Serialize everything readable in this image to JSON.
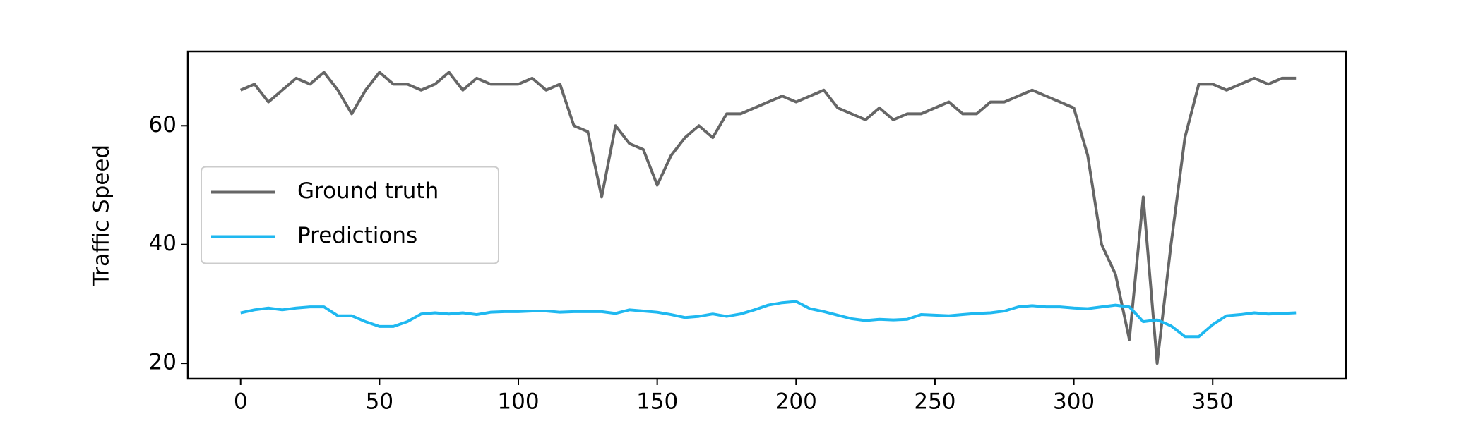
{
  "chart_data": {
    "type": "line",
    "y_label": "Traffic Speed",
    "x": [
      0,
      5,
      10,
      15,
      20,
      25,
      30,
      35,
      40,
      45,
      50,
      55,
      60,
      65,
      70,
      75,
      80,
      85,
      90,
      95,
      100,
      105,
      110,
      115,
      120,
      125,
      130,
      135,
      140,
      145,
      150,
      155,
      160,
      165,
      170,
      175,
      180,
      185,
      190,
      195,
      200,
      205,
      210,
      215,
      220,
      225,
      230,
      235,
      240,
      245,
      250,
      255,
      260,
      265,
      270,
      275,
      280,
      285,
      290,
      295,
      300,
      305,
      310,
      315,
      320,
      325,
      330,
      335,
      340,
      345,
      350,
      355,
      360,
      365,
      370,
      375,
      380
    ],
    "series": [
      {
        "name": "Ground truth",
        "color": "#666666",
        "values": [
          66,
          67,
          64,
          66,
          68,
          67,
          69,
          66,
          62,
          66,
          69,
          67,
          67,
          66,
          67,
          69,
          66,
          68,
          67,
          67,
          67,
          68,
          66,
          67,
          60,
          59,
          48,
          60,
          57,
          56,
          50,
          55,
          58,
          60,
          58,
          62,
          62,
          63,
          64,
          65,
          64,
          65,
          66,
          63,
          62,
          61,
          63,
          61,
          62,
          62,
          63,
          64,
          62,
          62,
          64,
          64,
          65,
          66,
          65,
          64,
          63,
          55,
          40,
          35,
          24,
          48,
          20,
          40,
          58,
          67,
          67,
          66,
          67,
          68,
          67,
          68,
          68
        ]
      },
      {
        "name": "Predictions",
        "color": "#1fb8f0",
        "values": [
          28.5,
          29,
          29.3,
          29,
          29.3,
          29.5,
          29.5,
          28,
          28,
          27,
          26.2,
          26.2,
          27,
          28.3,
          28.5,
          28.3,
          28.5,
          28.2,
          28.6,
          28.7,
          28.7,
          28.8,
          28.8,
          28.6,
          28.7,
          28.7,
          28.7,
          28.4,
          29,
          28.8,
          28.6,
          28.2,
          27.7,
          27.9,
          28.3,
          27.9,
          28.3,
          29,
          29.8,
          30.2,
          30.4,
          29.2,
          28.7,
          28.1,
          27.5,
          27.2,
          27.4,
          27.3,
          27.4,
          28.2,
          28.1,
          28,
          28.2,
          28.4,
          28.5,
          28.8,
          29.5,
          29.7,
          29.5,
          29.5,
          29.3,
          29.2,
          29.5,
          29.8,
          29.5,
          27,
          27.3,
          26.3,
          24.5,
          24.5,
          26.5,
          28,
          28.2,
          28.5,
          28.3,
          28.4,
          28.5
        ]
      }
    ],
    "xlim": [
      -19,
      398
    ],
    "ylim": [
      17.4,
      72.5
    ],
    "xticks": [
      0,
      50,
      100,
      150,
      200,
      250,
      300,
      350
    ],
    "yticks": [
      20,
      40,
      60
    ],
    "legend": "center left"
  }
}
